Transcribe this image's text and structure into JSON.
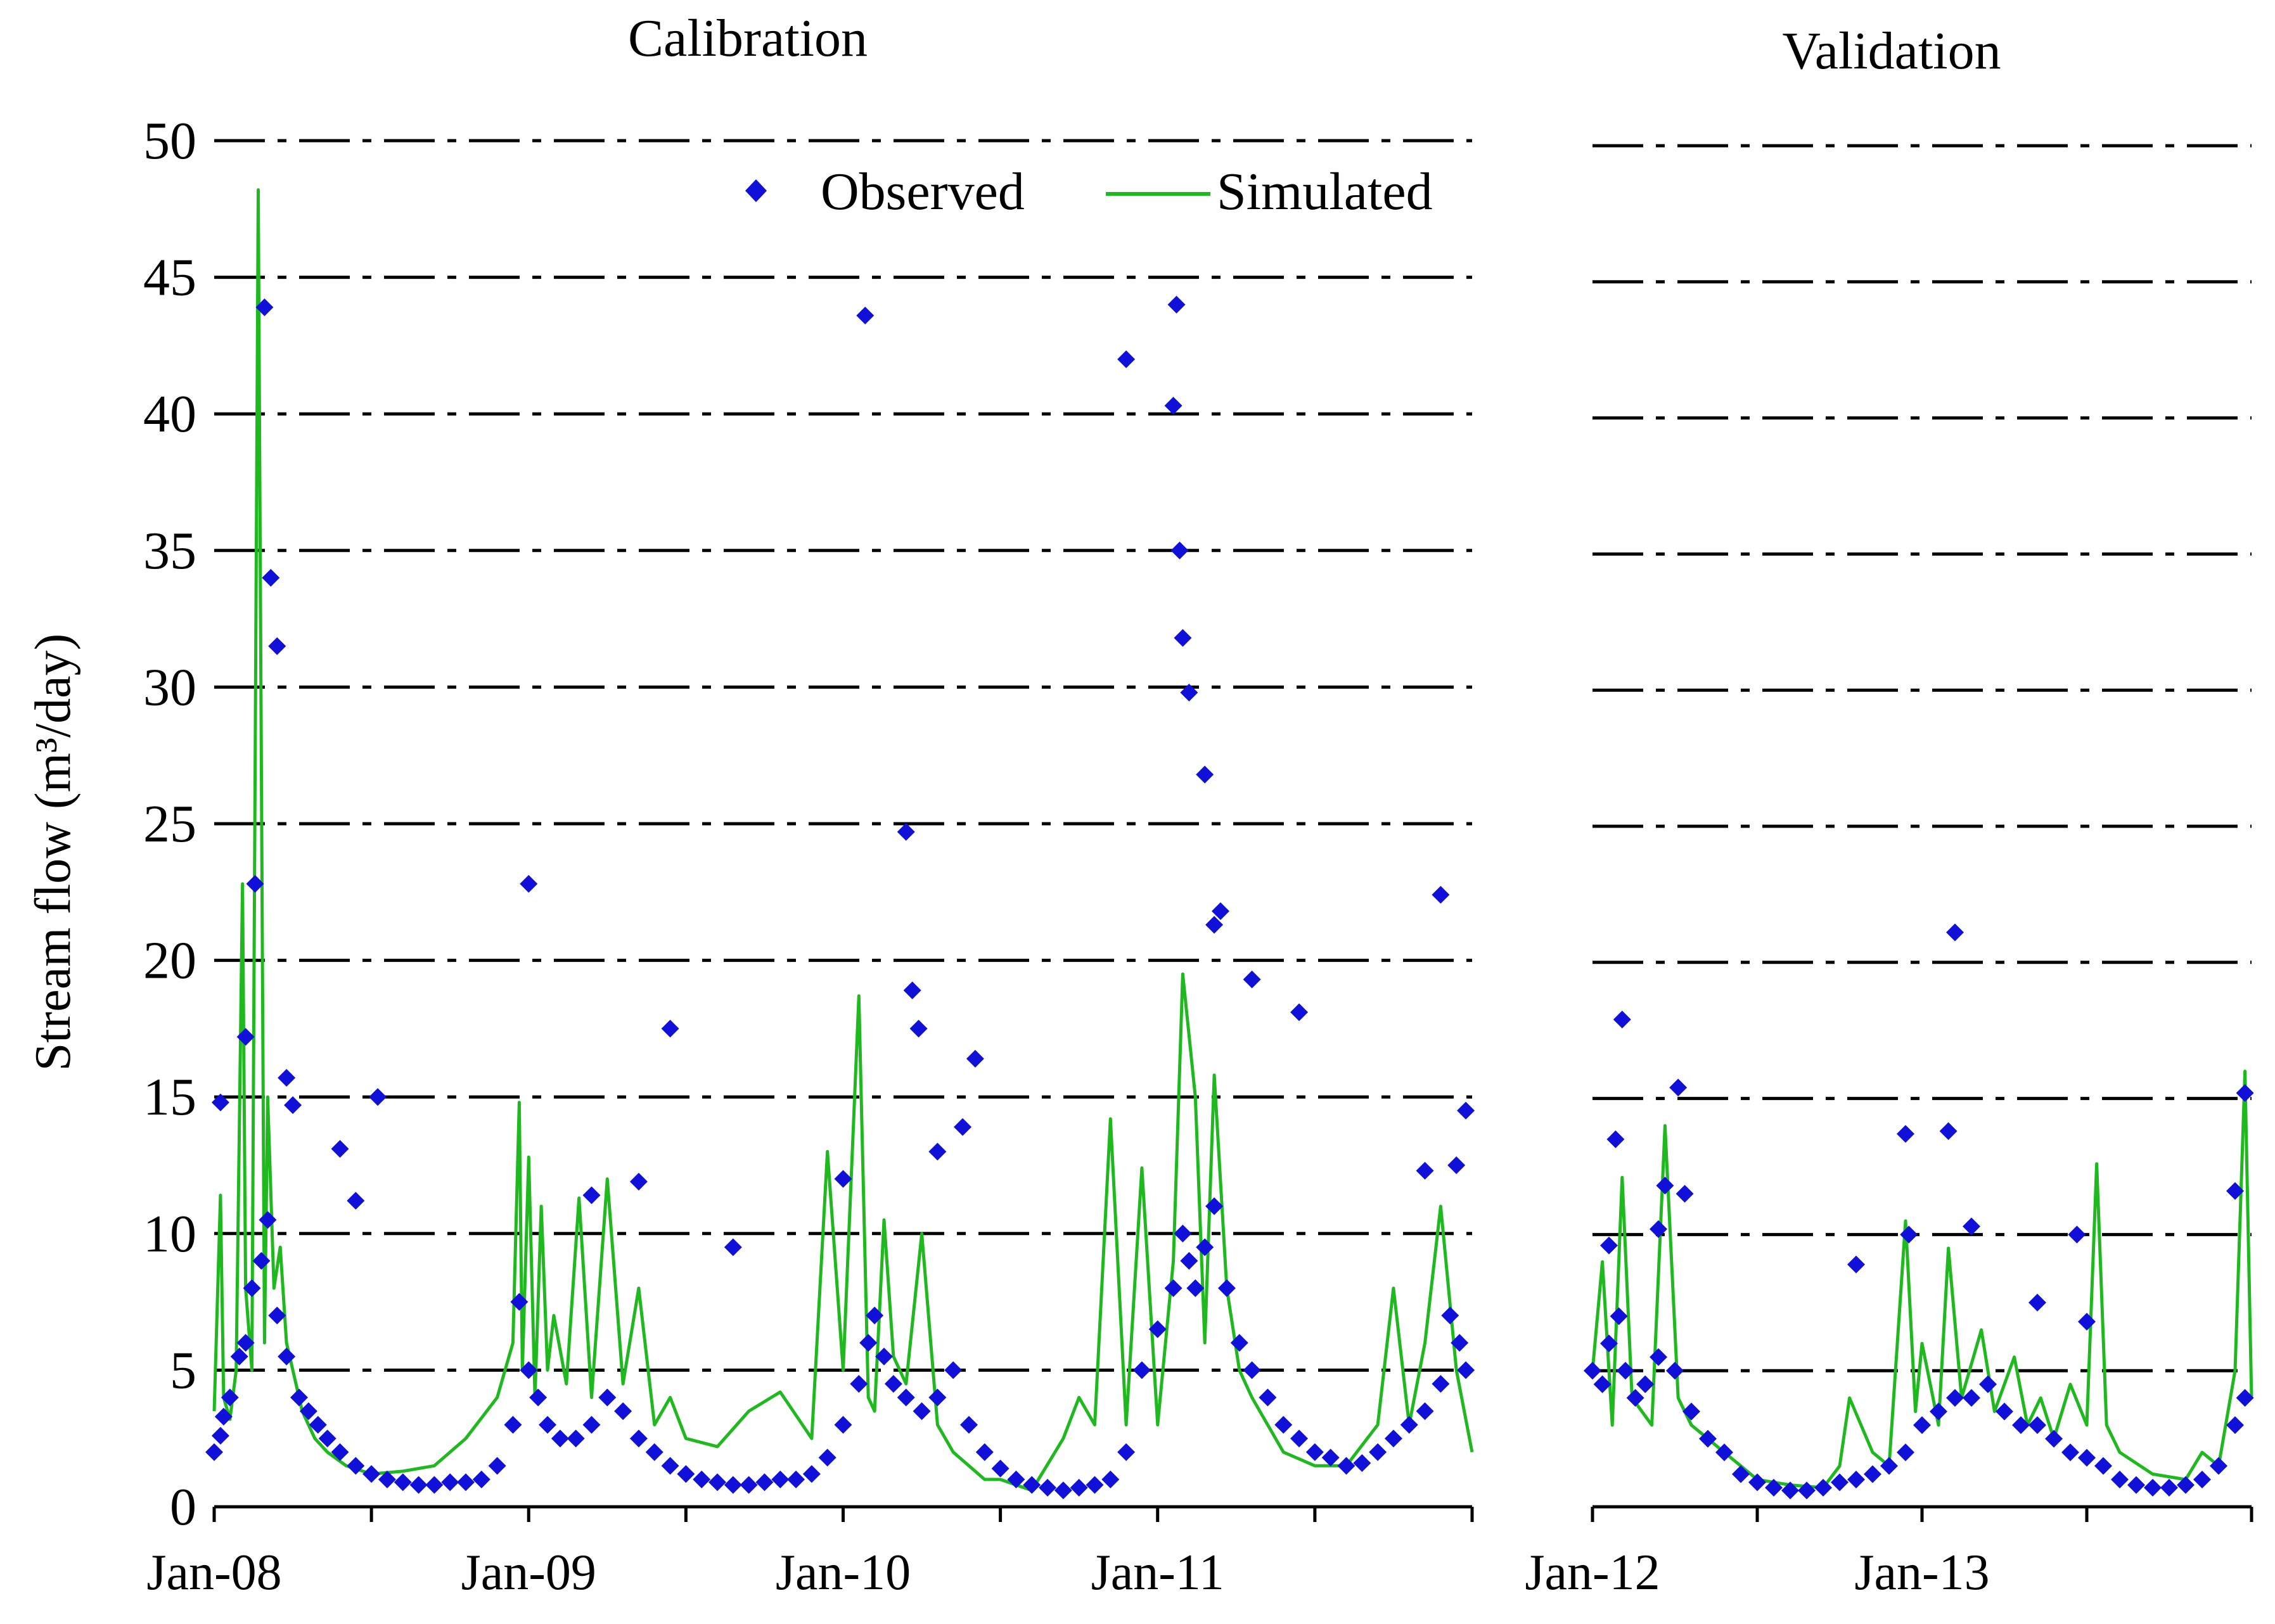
{
  "chart_data": {
    "type": "line",
    "ylabel": "Stream flow (m³/day)",
    "ylim": [
      0,
      50
    ],
    "yticks": [
      "0",
      "5",
      "10",
      "15",
      "20",
      "25",
      "30",
      "35",
      "40",
      "45",
      "50"
    ],
    "legend": {
      "observed": "Observed",
      "simulated": "Simulated",
      "position": "top"
    },
    "colors": {
      "observed": "#1010d8",
      "simulated": "#1fb81f",
      "grid": "#000000"
    },
    "panels": [
      {
        "title": "Calibration",
        "xrange": [
          2008.0,
          2012.0
        ],
        "xticks": [
          {
            "value": 2008.0,
            "label": "Jan-08"
          },
          {
            "value": 2009.0,
            "label": "Jan-09"
          },
          {
            "value": 2010.0,
            "label": "Jan-10"
          },
          {
            "value": 2011.0,
            "label": "Jan-11"
          }
        ],
        "series": [
          {
            "name": "Simulated",
            "x": [
              2008.0,
              2008.02,
              2008.03,
              2008.05,
              2008.07,
              2008.09,
              2008.1,
              2008.12,
              2008.14,
              2008.16,
              2008.17,
              2008.19,
              2008.21,
              2008.23,
              2008.25,
              2008.28,
              2008.32,
              2008.36,
              2008.42,
              2008.5,
              2008.6,
              2008.7,
              2008.8,
              2008.9,
              2008.95,
              2008.97,
              2008.98,
              2009.0,
              2009.02,
              2009.04,
              2009.06,
              2009.08,
              2009.12,
              2009.16,
              2009.2,
              2009.25,
              2009.3,
              2009.35,
              2009.4,
              2009.45,
              2009.5,
              2009.6,
              2009.7,
              2009.8,
              2009.9,
              2009.95,
              2010.0,
              2010.05,
              2010.08,
              2010.1,
              2010.13,
              2010.16,
              2010.2,
              2010.25,
              2010.3,
              2010.35,
              2010.4,
              2010.45,
              2010.5,
              2010.6,
              2010.7,
              2010.75,
              2010.8,
              2010.85,
              2010.9,
              2010.95,
              2011.0,
              2011.05,
              2011.08,
              2011.12,
              2011.15,
              2011.18,
              2011.22,
              2011.26,
              2011.3,
              2011.35,
              2011.4,
              2011.5,
              2011.6,
              2011.7,
              2011.75,
              2011.8,
              2011.85,
              2011.9,
              2011.95,
              2012.0
            ],
            "y": [
              3.5,
              11.4,
              4.0,
              3.2,
              5.0,
              22.8,
              8.0,
              5.0,
              48.2,
              6.0,
              15.0,
              8.0,
              9.5,
              6.0,
              5.0,
              3.5,
              2.5,
              2.0,
              1.5,
              1.2,
              1.3,
              1.5,
              2.5,
              4.0,
              6.0,
              14.8,
              5.0,
              12.8,
              4.0,
              11.0,
              5.0,
              7.0,
              4.5,
              11.3,
              4.0,
              12.0,
              4.5,
              8.0,
              3.0,
              4.0,
              2.5,
              2.2,
              3.5,
              4.2,
              2.5,
              13.0,
              5.0,
              18.7,
              4.0,
              3.5,
              10.5,
              5.5,
              4.5,
              10.0,
              3.0,
              2.0,
              1.5,
              1.0,
              1.0,
              0.6,
              2.5,
              4.0,
              3.0,
              14.2,
              3.0,
              12.4,
              3.0,
              9.0,
              19.5,
              15.0,
              6.0,
              15.8,
              8.0,
              5.0,
              4.0,
              3.0,
              2.0,
              1.5,
              1.5,
              3.0,
              8.0,
              3.0,
              6.0,
              11.0,
              5.0,
              2.0
            ]
          },
          {
            "name": "Observed",
            "x": [
              2008.0,
              2008.02,
              2008.03,
              2008.05,
              2008.08,
              2008.1,
              2008.12,
              2008.15,
              2008.17,
              2008.2,
              2008.23,
              2008.27,
              2008.3,
              2008.33,
              2008.36,
              2008.4,
              2008.45,
              2008.5,
              2008.55,
              2008.6,
              2008.65,
              2008.7,
              2008.75,
              2008.8,
              2008.85,
              2008.9,
              2008.95,
              2008.97,
              2009.0,
              2009.03,
              2009.06,
              2009.1,
              2009.15,
              2009.2,
              2009.25,
              2009.3,
              2009.35,
              2009.4,
              2009.45,
              2009.5,
              2009.55,
              2009.6,
              2009.65,
              2009.7,
              2009.75,
              2009.8,
              2009.85,
              2009.9,
              2009.95,
              2010.0,
              2010.05,
              2010.08,
              2010.1,
              2010.13,
              2010.16,
              2010.2,
              2010.25,
              2010.3,
              2010.35,
              2010.4,
              2010.45,
              2010.5,
              2010.55,
              2010.6,
              2010.65,
              2010.7,
              2010.75,
              2010.8,
              2010.85,
              2010.9,
              2010.95,
              2011.0,
              2011.05,
              2011.08,
              2011.1,
              2011.12,
              2011.15,
              2011.18,
              2011.22,
              2011.26,
              2011.3,
              2011.35,
              2011.4,
              2011.45,
              2011.5,
              2011.55,
              2011.6,
              2011.65,
              2011.7,
              2011.75,
              2011.8,
              2011.85,
              2011.9,
              2011.93,
              2011.96,
              2011.98,
              2008.02,
              2008.1,
              2008.13,
              2008.16,
              2008.18,
              2008.2,
              2008.23,
              2008.25,
              2008.4,
              2008.45,
              2008.52,
              2009.0,
              2009.2,
              2009.35,
              2009.45,
              2009.65,
              2010.0,
              2010.07,
              2010.2,
              2010.22,
              2010.24,
              2010.3,
              2010.38,
              2010.42,
              2010.9,
              2011.05,
              2011.06,
              2011.07,
              2011.08,
              2011.1,
              2011.15,
              2011.18,
              2011.2,
              2011.3,
              2011.45,
              2011.85,
              2011.9,
              2011.95,
              2011.98
            ],
            "y": [
              2.0,
              2.6,
              3.3,
              4.0,
              5.5,
              6.0,
              8.0,
              9.0,
              10.5,
              7.0,
              5.5,
              4.0,
              3.5,
              3.0,
              2.5,
              2.0,
              1.5,
              1.2,
              1.0,
              0.9,
              0.8,
              0.8,
              0.9,
              0.9,
              1.0,
              1.5,
              3.0,
              7.5,
              5.0,
              4.0,
              3.0,
              2.5,
              2.5,
              3.0,
              4.0,
              3.5,
              2.5,
              2.0,
              1.5,
              1.2,
              1.0,
              0.9,
              0.8,
              0.8,
              0.9,
              1.0,
              1.0,
              1.2,
              1.8,
              3.0,
              4.5,
              6.0,
              7.0,
              5.5,
              4.5,
              4.0,
              3.5,
              4.0,
              5.0,
              3.0,
              2.0,
              1.4,
              1.0,
              0.8,
              0.7,
              0.6,
              0.7,
              0.8,
              1.0,
              2.0,
              5.0,
              6.5,
              8.0,
              10.0,
              9.0,
              8.0,
              9.5,
              11.0,
              8.0,
              6.0,
              5.0,
              4.0,
              3.0,
              2.5,
              2.0,
              1.8,
              1.5,
              1.6,
              2.0,
              2.5,
              3.0,
              3.5,
              4.5,
              7.0,
              6.0,
              5.0,
              14.8,
              17.2,
              22.8,
              43.9,
              34.0,
              31.5,
              15.7,
              14.7,
              13.1,
              11.2,
              15.0,
              22.8,
              11.4,
              11.9,
              17.5,
              9.5,
              12.0,
              43.6,
              24.7,
              18.9,
              17.5,
              13.0,
              13.9,
              16.4,
              42.0,
              40.3,
              44.0,
              35.0,
              31.8,
              29.8,
              26.8,
              21.3,
              21.8,
              19.3,
              18.1,
              12.3,
              22.4,
              12.5,
              14.5
            ]
          }
        ]
      },
      {
        "title": "Validation",
        "xrange": [
          2012.0,
          2014.0
        ],
        "xticks": [
          {
            "value": 2012.0,
            "label": "Jan-12"
          },
          {
            "value": 2013.0,
            "label": "Jan-13"
          }
        ],
        "series": [
          {
            "name": "Simulated",
            "x": [
              2012.0,
              2012.03,
              2012.06,
              2012.09,
              2012.12,
              2012.15,
              2012.18,
              2012.22,
              2012.26,
              2012.3,
              2012.35,
              2012.4,
              2012.5,
              2012.6,
              2012.7,
              2012.75,
              2012.78,
              2012.85,
              2012.9,
              2012.95,
              2012.98,
              2013.0,
              2013.05,
              2013.08,
              2013.12,
              2013.18,
              2013.22,
              2013.28,
              2013.32,
              2013.36,
              2013.4,
              2013.45,
              2013.5,
              2013.53,
              2013.56,
              2013.6,
              2013.7,
              2013.8,
              2013.85,
              2013.9,
              2013.95,
              2013.98,
              2014.0
            ],
            "y": [
              5.0,
              9.0,
              3.0,
              12.1,
              4.0,
              3.5,
              3.0,
              14.0,
              4.0,
              3.0,
              2.5,
              2.0,
              1.0,
              0.8,
              0.7,
              1.5,
              4.0,
              2.0,
              1.5,
              10.5,
              3.5,
              6.0,
              3.0,
              9.5,
              4.0,
              6.5,
              3.5,
              5.5,
              3.0,
              4.0,
              2.5,
              4.5,
              3.0,
              12.6,
              3.0,
              2.0,
              1.2,
              1.0,
              2.0,
              1.5,
              5.0,
              16.0,
              4.0
            ]
          },
          {
            "name": "Observed",
            "x": [
              2012.0,
              2012.03,
              2012.05,
              2012.08,
              2012.1,
              2012.13,
              2012.16,
              2012.2,
              2012.25,
              2012.3,
              2012.35,
              2012.4,
              2012.45,
              2012.5,
              2012.55,
              2012.6,
              2012.65,
              2012.7,
              2012.75,
              2012.8,
              2012.85,
              2012.9,
              2012.95,
              2013.0,
              2013.05,
              2013.1,
              2013.15,
              2013.2,
              2013.25,
              2013.3,
              2013.35,
              2013.4,
              2013.45,
              2013.5,
              2013.55,
              2013.6,
              2013.65,
              2013.7,
              2013.75,
              2013.8,
              2013.85,
              2013.9,
              2013.95,
              2013.98,
              2012.05,
              2012.07,
              2012.09,
              2012.2,
              2012.22,
              2012.26,
              2012.28,
              2012.8,
              2012.95,
              2012.96,
              2013.08,
              2013.1,
              2013.15,
              2013.35,
              2013.47,
              2013.5,
              2013.95,
              2013.98
            ],
            "y": [
              5.0,
              4.5,
              6.0,
              7.0,
              5.0,
              4.0,
              4.5,
              5.5,
              5.0,
              3.5,
              2.5,
              2.0,
              1.2,
              0.9,
              0.7,
              0.6,
              0.6,
              0.7,
              0.9,
              1.0,
              1.2,
              1.5,
              2.0,
              3.0,
              3.5,
              4.0,
              4.0,
              4.5,
              3.5,
              3.0,
              3.0,
              2.5,
              2.0,
              1.8,
              1.5,
              1.0,
              0.8,
              0.7,
              0.7,
              0.8,
              1.0,
              1.5,
              3.0,
              4.0,
              9.6,
              13.5,
              17.9,
              10.2,
              11.8,
              15.4,
              11.5,
              8.9,
              13.7,
              10.0,
              13.8,
              21.1,
              10.3,
              7.5,
              10.0,
              6.8,
              11.6,
              15.2
            ]
          }
        ]
      }
    ]
  }
}
